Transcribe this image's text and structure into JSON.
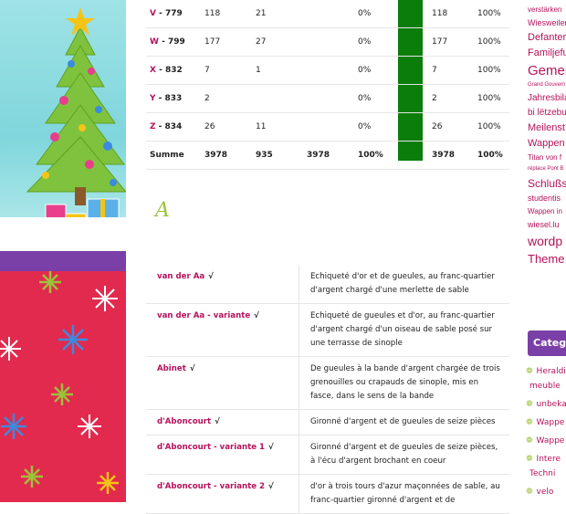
{
  "top_table": {
    "rows": [
      {
        "letter": "V",
        "code": " - 779",
        "a": "118",
        "b": "21",
        "c": "",
        "pct": "0%",
        "d": "118",
        "pct2": "100%"
      },
      {
        "letter": "W",
        "code": " - 799",
        "a": "177",
        "b": "27",
        "c": "",
        "pct": "0%",
        "d": "177",
        "pct2": "100%"
      },
      {
        "letter": "X",
        "code": " - 832",
        "a": "7",
        "b": "1",
        "c": "",
        "pct": "0%",
        "d": "7",
        "pct2": "100%"
      },
      {
        "letter": "Y",
        "code": " - 833",
        "a": "2",
        "b": "",
        "c": "",
        "pct": "0%",
        "d": "2",
        "pct2": "100%"
      },
      {
        "letter": "Z",
        "code": " - 834",
        "a": "26",
        "b": "11",
        "c": "",
        "pct": "0%",
        "d": "26",
        "pct2": "100%"
      }
    ],
    "sum": {
      "label": "Summe",
      "a": "3978",
      "b": "935",
      "c": "3978",
      "pct": "100%",
      "d": "3978",
      "pct2": "100%"
    }
  },
  "section_heading": "A",
  "entries": [
    {
      "name": "van der Aa",
      "check": "√",
      "text": "Echiqueté d'or et de gueules, au franc-quartier d'argent chargé d'une merlette de sable"
    },
    {
      "name": "van der Aa - variante",
      "check": "√",
      "text": "Echiqueté de gueules et d'or, au franc-quartier d'argent chargé d'un oiseau de sable posé sur une terrasse de sinople"
    },
    {
      "name": "Abinet",
      "check": "√",
      "text": "De gueules à la bande d'argent chargée de trois grenouilles ou crapauds de sinople, mis en fasce, dans le sens de la bande"
    },
    {
      "name": "d'Aboncourt",
      "check": "√",
      "text": "Gironné d'argent et de gueules de seize pièces"
    },
    {
      "name": "d'Aboncourt - variante 1",
      "check": "√",
      "text": "Gironné d'argent et de gueules de seize pièces, à l'écu d'argent brochant en coeur"
    },
    {
      "name": "d'Aboncourt - variante 2",
      "check": "√",
      "text": "d'or à trois tours d'azur maçonnées de sable, au franc-quartier gironné d'argent et de"
    }
  ],
  "sidebar": {
    "tags": [
      {
        "text": "verstärken",
        "size": 8
      },
      {
        "text": "Wiesweiler D",
        "size": 9
      },
      {
        "text": "Defanter",
        "size": 11
      },
      {
        "text": "Familjefu",
        "size": 11
      },
      {
        "text": "Gemei",
        "size": 15
      },
      {
        "text": "Grand Gouvern",
        "size": 6
      },
      {
        "text": "Jahresbila",
        "size": 10
      },
      {
        "text": "bi lëtzebu",
        "size": 10
      },
      {
        "text": "Meilenst",
        "size": 11
      },
      {
        "text": "Wappen",
        "size": 11
      },
      {
        "text": "Titan von f",
        "size": 8
      },
      {
        "text": "réplace Pont B",
        "size": 6
      },
      {
        "text": "Schlußs",
        "size": 12
      },
      {
        "text": "studentis",
        "size": 9
      },
      {
        "text": "Wappen in",
        "size": 8
      },
      {
        "text": "wiesel.lu",
        "size": 9
      },
      {
        "text": "wordp",
        "size": 14
      },
      {
        "text": "Theme",
        "size": 13
      }
    ],
    "categories_title": "Catego",
    "categories": [
      {
        "label": "Heraldi",
        "sub": "meuble"
      },
      {
        "label": "unbeka",
        "sub": ""
      },
      {
        "label": "Wappe",
        "sub": ""
      },
      {
        "label": "Wappe",
        "sub": ""
      },
      {
        "label": "Intere",
        "sub": "Techni"
      },
      {
        "label": "velo",
        "sub": ""
      }
    ]
  },
  "colors": {
    "accent": "#b4135c",
    "green": "#0b7d0b",
    "lime": "#9cc23a",
    "purple": "#7b3fa8",
    "red": "#e22a4e",
    "sky": "#9fe3e6"
  }
}
